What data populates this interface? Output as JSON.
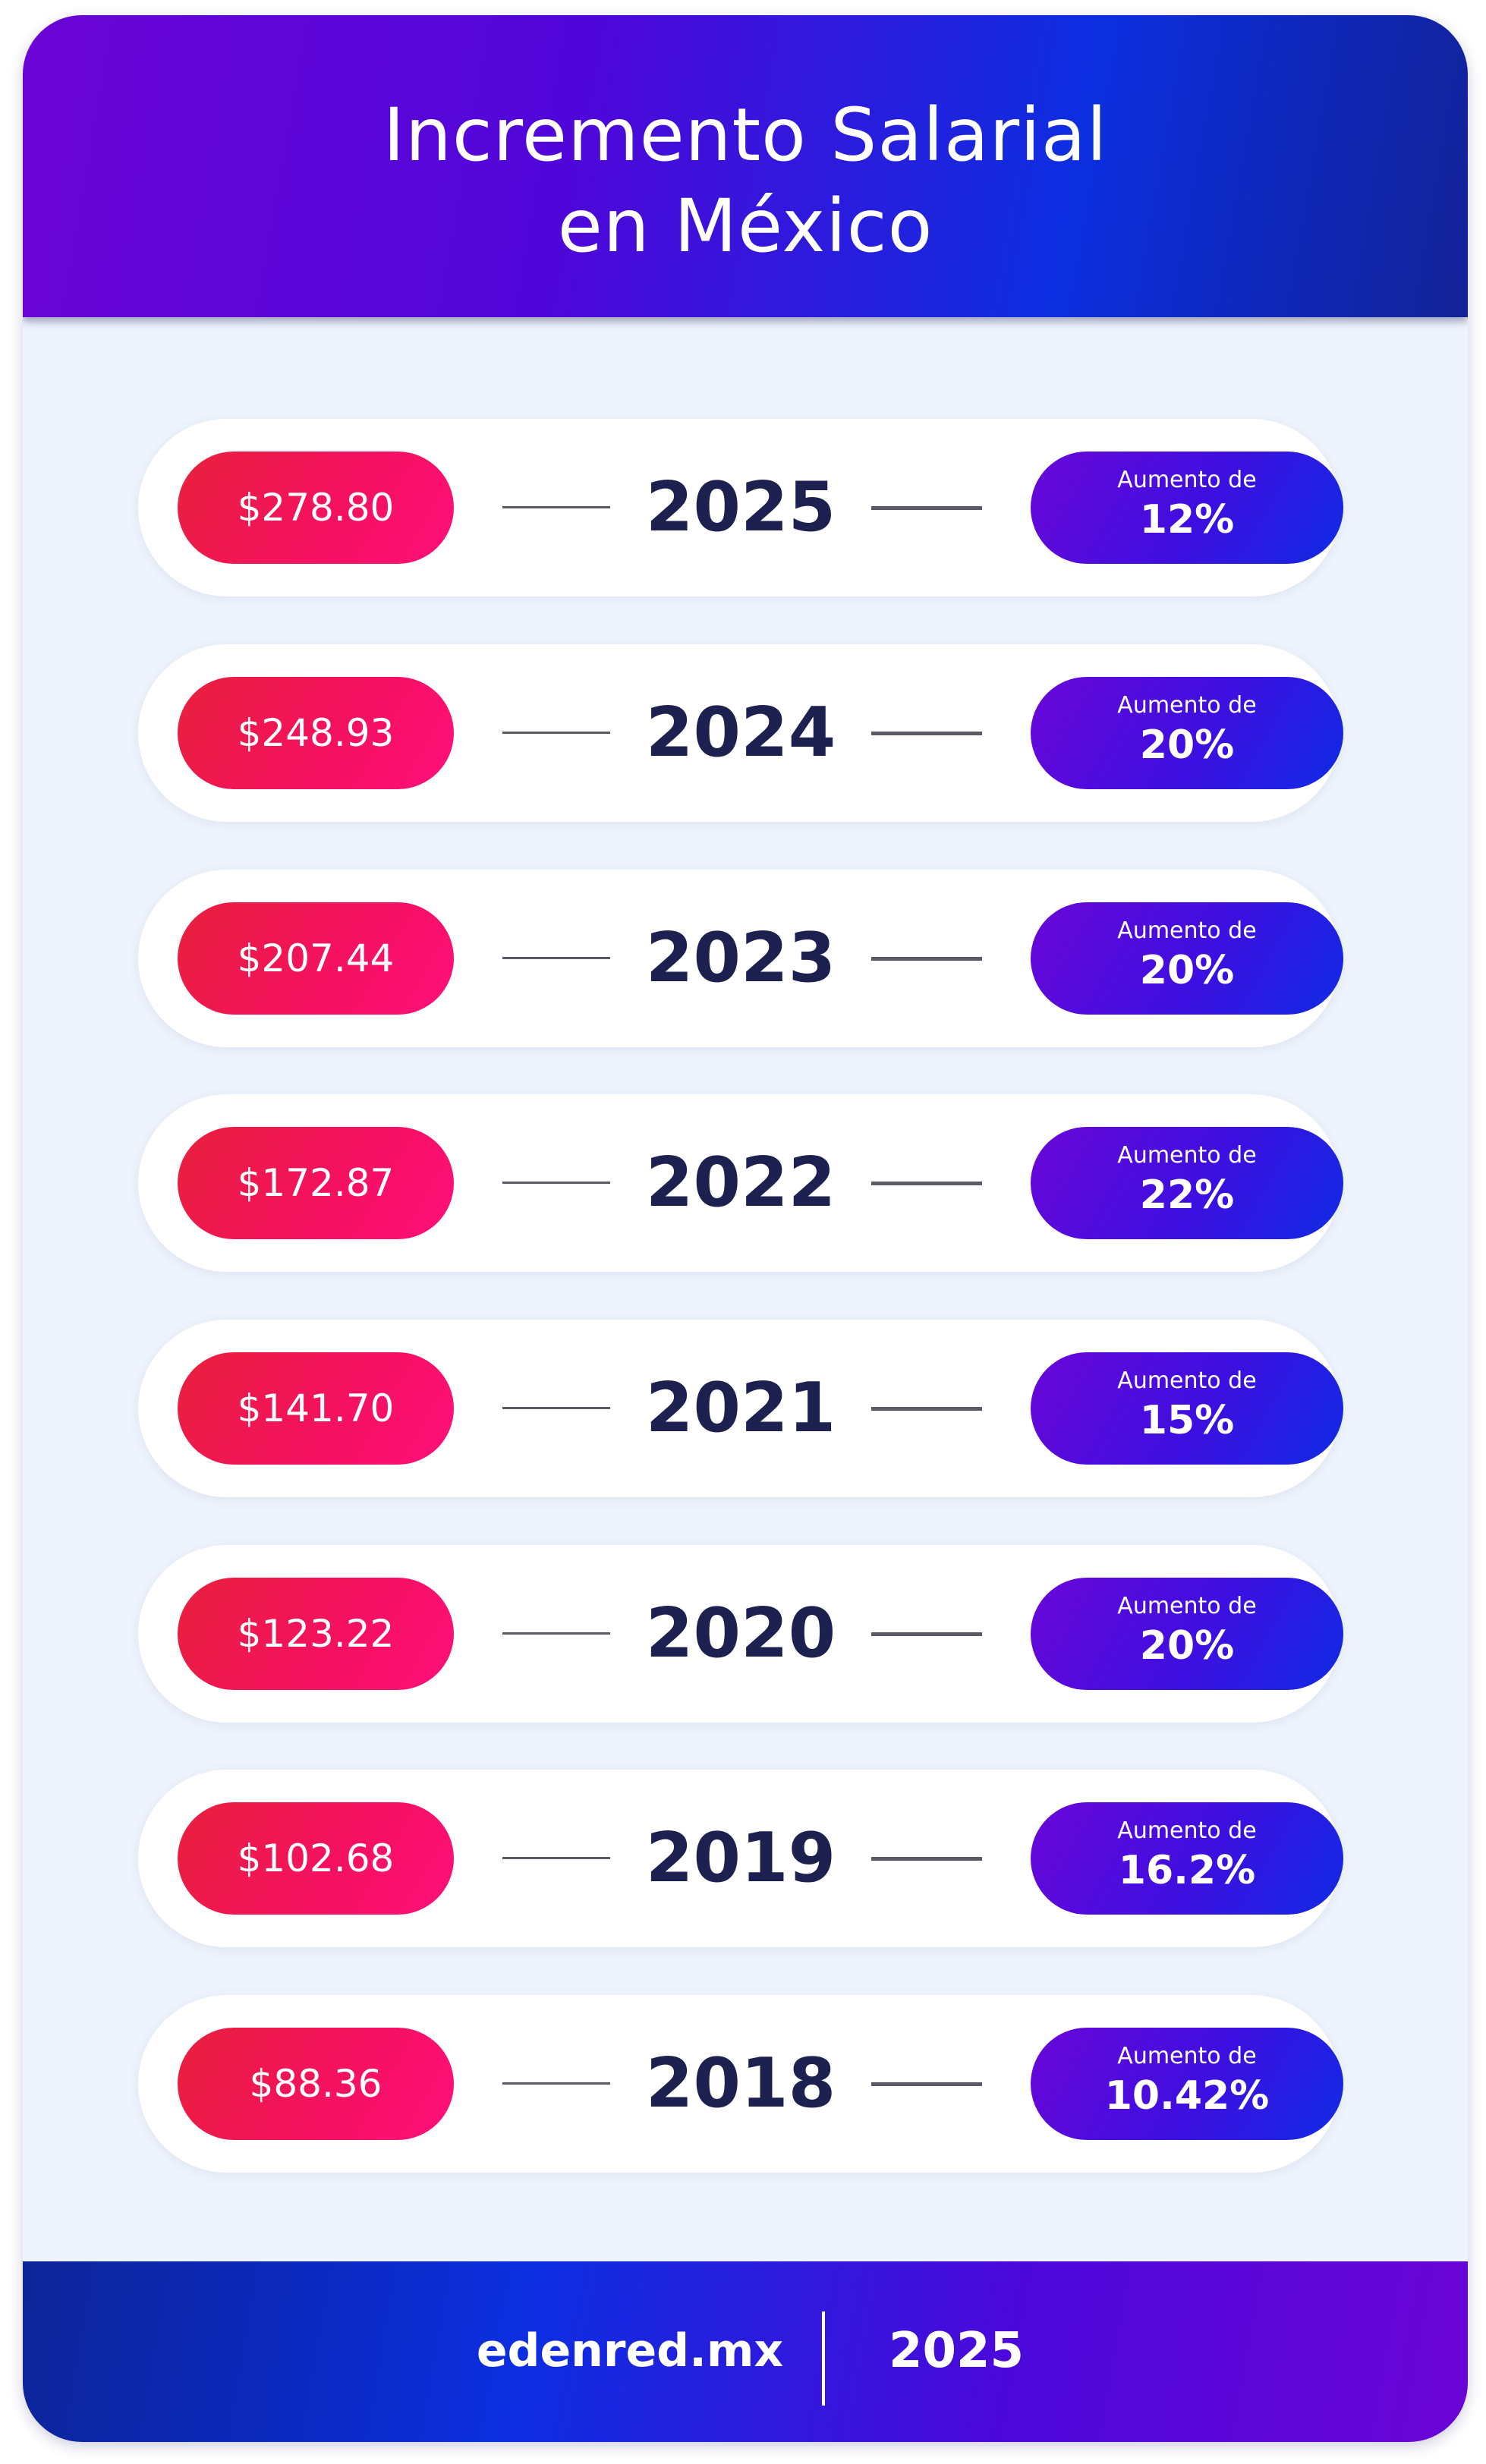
{
  "header": {
    "title_line1": "Incremento Salarial",
    "title_line2": "en México"
  },
  "rows": [
    {
      "salary": "$278.80",
      "year": "2025",
      "increase_label": "Aumento de",
      "increase": "12%"
    },
    {
      "salary": "$248.93",
      "year": "2024",
      "increase_label": "Aumento de",
      "increase": "20%"
    },
    {
      "salary": "$207.44",
      "year": "2023",
      "increase_label": "Aumento de",
      "increase": "20%"
    },
    {
      "salary": "$172.87",
      "year": "2022",
      "increase_label": "Aumento de",
      "increase": "22%"
    },
    {
      "salary": "$141.70",
      "year": "2021",
      "increase_label": "Aumento de",
      "increase": "15%"
    },
    {
      "salary": "$123.22",
      "year": "2020",
      "increase_label": "Aumento de",
      "increase": "20%"
    },
    {
      "salary": "$102.68",
      "year": "2019",
      "increase_label": "Aumento de",
      "increase": "16.2%"
    },
    {
      "salary": "$88.36",
      "year": "2018",
      "increase_label": "Aumento de",
      "increase": "10.42%"
    }
  ],
  "footer": {
    "site": "edenred.mx",
    "year": "2025"
  },
  "colors": {
    "salary_pill": "#f0145a",
    "increase_pill": "#4a0ce0",
    "year_text": "#1c2150",
    "background": "#eef4fd",
    "header_start": "#6b04d6",
    "header_end": "#122297"
  }
}
